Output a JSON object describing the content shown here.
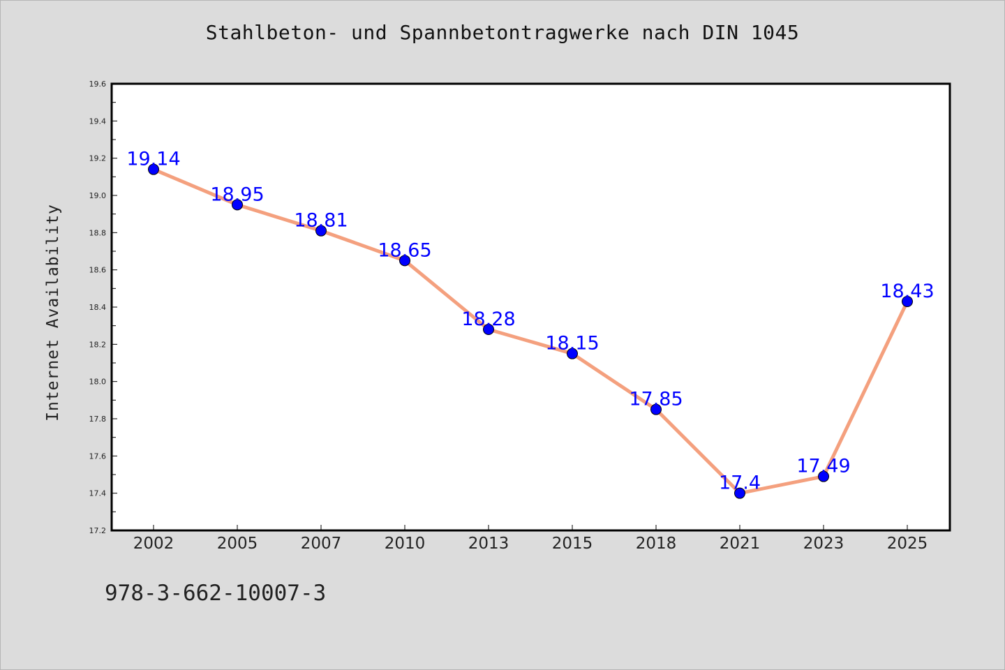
{
  "title": "Stahlbeton- und Spannbetontragwerke nach DIN 1045",
  "footer_text": "978-3-662-10007-3",
  "colors": {
    "background": "#dcdcdc",
    "plot_background": "#ffffff",
    "line": "#f4a07e",
    "marker": "#0000ff",
    "data_label": "#0000ff"
  },
  "chart_data": {
    "type": "line",
    "title": "Stahlbeton- und Spannbetontragwerke nach DIN 1045",
    "xlabel": "",
    "ylabel": "Internet Availability",
    "categories": [
      "2002",
      "2005",
      "2007",
      "2010",
      "2013",
      "2015",
      "2018",
      "2021",
      "2023",
      "2025"
    ],
    "series": [
      {
        "values": [
          19.14,
          18.95,
          18.81,
          18.65,
          18.28,
          18.15,
          17.85,
          17.4,
          17.49,
          18.43
        ],
        "labels": [
          "19.14",
          "18.95",
          "18.81",
          "18.65",
          "18.28",
          "18.15",
          "17.85",
          "17.4",
          "17.49",
          "18.43"
        ]
      }
    ],
    "ylim": [
      17.2,
      19.6
    ],
    "yticks": [
      "17.2",
      "17.4",
      "17.6",
      "17.8",
      "18.0",
      "18.2",
      "18.4",
      "18.6",
      "18.8",
      "19.0",
      "19.2",
      "19.4",
      "19.6"
    ],
    "grid": false,
    "legend": "none"
  }
}
